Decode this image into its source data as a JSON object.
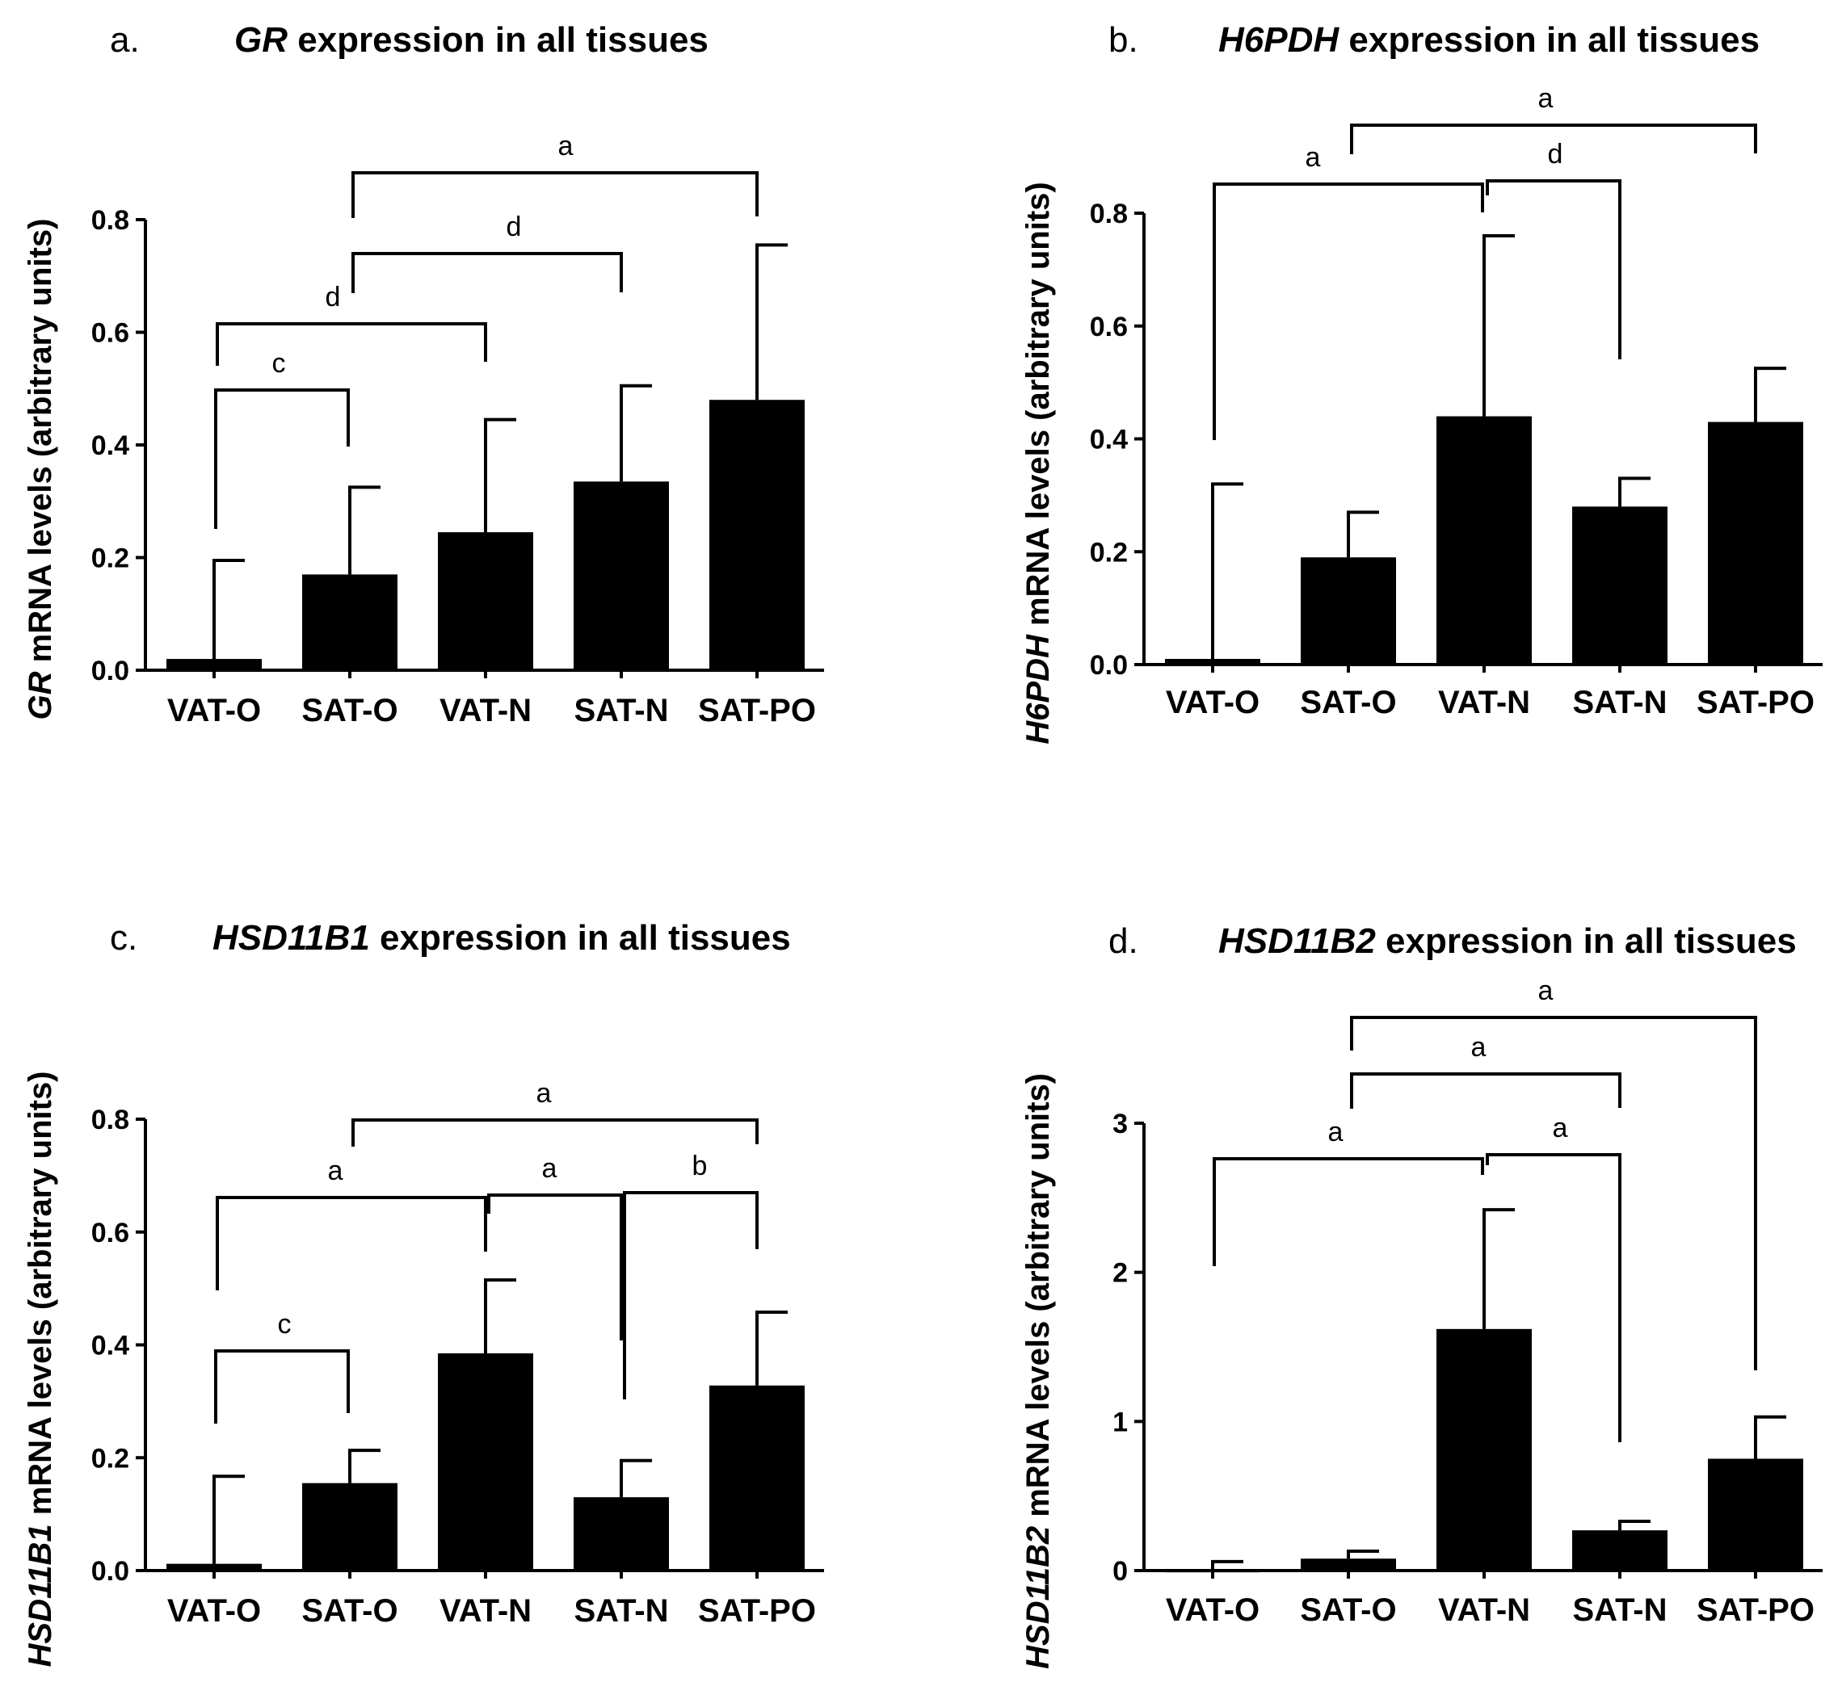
{
  "chart_data": [
    {
      "panel": "a.",
      "type": "bar",
      "title_gene": "GR",
      "title_rest": " expression in all tissues",
      "ylabel_gene": "GR",
      "ylabel_rest": " mRNA levels (arbitrary units)",
      "categories": [
        "VAT-O",
        "SAT-O",
        "VAT-N",
        "SAT-N",
        "SAT-PO"
      ],
      "values": [
        0.02,
        0.17,
        0.245,
        0.335,
        0.48
      ],
      "errors": [
        0.175,
        0.155,
        0.2,
        0.17,
        0.275
      ],
      "ylim": [
        0,
        0.8
      ],
      "yticks": [
        "0.0",
        "0.2",
        "0.4",
        "0.6",
        "0.8"
      ],
      "annotations": [
        {
          "from": "VAT-O",
          "to": "SAT-O",
          "label": "c"
        },
        {
          "from": "VAT-O",
          "to": "VAT-N",
          "label": "d"
        },
        {
          "from": "SAT-O",
          "to": "SAT-N",
          "label": "d"
        },
        {
          "from": "SAT-O",
          "to": "SAT-PO",
          "label": "a"
        }
      ]
    },
    {
      "panel": "b.",
      "type": "bar",
      "title_gene": "H6PDH",
      "title_rest": " expression in all tissues",
      "ylabel_gene": "H6PDH",
      "ylabel_rest": " mRNA levels (arbitrary units)",
      "categories": [
        "VAT-O",
        "SAT-O",
        "VAT-N",
        "SAT-N",
        "SAT-PO"
      ],
      "values": [
        0.01,
        0.19,
        0.44,
        0.28,
        0.43
      ],
      "errors": [
        0.31,
        0.08,
        0.32,
        0.05,
        0.095
      ],
      "ylim": [
        0,
        0.8
      ],
      "yticks": [
        "0.0",
        "0.2",
        "0.4",
        "0.6",
        "0.8"
      ],
      "annotations": [
        {
          "from": "VAT-O",
          "to": "VAT-N",
          "label": "a"
        },
        {
          "from": "VAT-N",
          "to": "SAT-N",
          "label": "d"
        },
        {
          "from": "SAT-O",
          "to": "SAT-PO",
          "label": "a"
        }
      ]
    },
    {
      "panel": "c.",
      "type": "bar",
      "title_gene": "HSD11B1",
      "title_rest": " expression in all tissues",
      "ylabel_gene": "HSD11B1",
      "ylabel_rest": " mRNA levels (arbitrary units)",
      "categories": [
        "VAT-O",
        "SAT-O",
        "VAT-N",
        "SAT-N",
        "SAT-PO"
      ],
      "values": [
        0.012,
        0.155,
        0.385,
        0.13,
        0.328
      ],
      "errors": [
        0.155,
        0.058,
        0.13,
        0.065,
        0.13
      ],
      "ylim": [
        0,
        0.8
      ],
      "yticks": [
        "0.0",
        "0.2",
        "0.4",
        "0.6",
        "0.8"
      ],
      "annotations": [
        {
          "from": "VAT-O",
          "to": "SAT-O",
          "label": "c"
        },
        {
          "from": "VAT-O",
          "to": "VAT-N",
          "label": "a"
        },
        {
          "from": "VAT-N",
          "to": "SAT-N",
          "label": "a"
        },
        {
          "from": "SAT-N",
          "to": "SAT-PO",
          "label": "b"
        },
        {
          "from": "SAT-O",
          "to": "SAT-PO",
          "label": "a"
        }
      ]
    },
    {
      "panel": "d.",
      "type": "bar",
      "title_gene": "HSD11B2",
      "title_rest": " expression in all tissues",
      "ylabel_gene": "HSD11B2",
      "ylabel_rest": " mRNA levels (arbitrary units)",
      "categories": [
        "VAT-O",
        "SAT-O",
        "VAT-N",
        "SAT-N",
        "SAT-PO"
      ],
      "values": [
        0.01,
        0.08,
        1.62,
        0.27,
        0.75
      ],
      "errors": [
        0.05,
        0.05,
        0.8,
        0.06,
        0.28
      ],
      "ylim": [
        0,
        3
      ],
      "yticks": [
        "0",
        "1",
        "2",
        "3"
      ],
      "annotations": [
        {
          "from": "VAT-O",
          "to": "VAT-N",
          "label": "a"
        },
        {
          "from": "VAT-N",
          "to": "SAT-N",
          "label": "a"
        },
        {
          "from": "SAT-O",
          "to": "SAT-N",
          "label": "a"
        },
        {
          "from": "SAT-O",
          "to": "SAT-PO",
          "label": "a"
        }
      ]
    }
  ]
}
